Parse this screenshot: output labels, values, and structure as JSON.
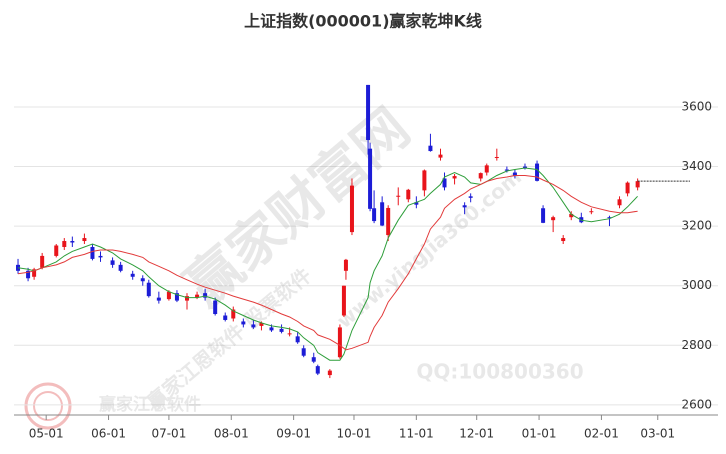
{
  "chart_data": {
    "type": "candlestick",
    "title": "上证指数(000001)赢家乾坤K线",
    "categories": [
      "04-17",
      "04-22",
      "04-25",
      "04-29",
      "05-06",
      "05-10",
      "05-14",
      "05-20",
      "05-24",
      "05-28",
      "06-03",
      "06-07",
      "06-13",
      "06-18",
      "06-21",
      "06-26",
      "07-01",
      "07-05",
      "07-10",
      "07-15",
      "07-19",
      "07-24",
      "07-29",
      "08-02",
      "08-07",
      "08-12",
      "08-16",
      "08-21",
      "08-26",
      "08-30",
      "09-03",
      "09-06",
      "09-11",
      "09-13",
      "09-19",
      "09-24",
      "09-26",
      "09-27",
      "09-30",
      "10-08",
      "10-09",
      "10-11",
      "10-15",
      "10-18",
      "10-23",
      "10-28",
      "11-01",
      "11-05",
      "11-08",
      "11-13",
      "11-15",
      "11-20",
      "11-25",
      "11-28",
      "12-03",
      "12-06",
      "12-11",
      "12-16",
      "12-20",
      "12-25",
      "12-31",
      "01-03",
      "01-08",
      "01-13",
      "01-17",
      "01-22",
      "01-27",
      "02-05",
      "02-10",
      "02-14",
      "02-19"
    ],
    "open": [
      3070,
      3050,
      3030,
      3060,
      3100,
      3130,
      3150,
      3150,
      3130,
      3100,
      3085,
      3070,
      3040,
      3025,
      3010,
      2960,
      2955,
      2975,
      2950,
      2960,
      2975,
      2950,
      2900,
      2890,
      2880,
      2870,
      2865,
      2860,
      2855,
      2840,
      2830,
      2790,
      2760,
      2730,
      2700,
      2760,
      2900,
      3050,
      3180,
      3674,
      3460,
      3260,
      3280,
      3170,
      3300,
      3290,
      3280,
      3320,
      3470,
      3430,
      3360,
      3360,
      3270,
      3300,
      3360,
      3380,
      3430,
      3390,
      3380,
      3400,
      3410,
      3260,
      3220,
      3150,
      3230,
      3230,
      3250,
      3230,
      3270,
      3310,
      3330
    ],
    "high": [
      3090,
      3060,
      3060,
      3110,
      3140,
      3160,
      3165,
      3175,
      3140,
      3115,
      3095,
      3080,
      3050,
      3035,
      3020,
      2980,
      2985,
      2985,
      2975,
      2980,
      2990,
      2960,
      2910,
      2930,
      2890,
      2885,
      2880,
      2870,
      2870,
      2860,
      2845,
      2800,
      2775,
      2735,
      2720,
      2870,
      3000,
      3090,
      3360,
      3674,
      3480,
      3320,
      3300,
      3270,
      3330,
      3325,
      3300,
      3390,
      3510,
      3460,
      3380,
      3375,
      3280,
      3310,
      3380,
      3410,
      3460,
      3400,
      3390,
      3410,
      3420,
      3270,
      3235,
      3170,
      3250,
      3245,
      3260,
      3235,
      3300,
      3350,
      3360
    ],
    "low": [
      3040,
      3015,
      3020,
      3055,
      3095,
      3120,
      3130,
      3140,
      3085,
      3080,
      3060,
      3045,
      3020,
      3000,
      2960,
      2940,
      2950,
      2945,
      2920,
      2955,
      2950,
      2900,
      2880,
      2880,
      2860,
      2855,
      2850,
      2845,
      2840,
      2830,
      2805,
      2760,
      2740,
      2700,
      2690,
      2755,
      2895,
      3020,
      3170,
      3440,
      3250,
      3210,
      3200,
      3150,
      3270,
      3280,
      3260,
      3300,
      3450,
      3420,
      3320,
      3340,
      3240,
      3280,
      3350,
      3370,
      3420,
      3380,
      3360,
      3390,
      3350,
      3210,
      3180,
      3140,
      3220,
      3210,
      3240,
      3200,
      3260,
      3300,
      3320
    ],
    "close": [
      3050,
      3025,
      3055,
      3100,
      3135,
      3150,
      3145,
      3160,
      3090,
      3095,
      3070,
      3050,
      3030,
      3015,
      2965,
      2950,
      2980,
      2950,
      2965,
      2970,
      2960,
      2905,
      2885,
      2920,
      2870,
      2860,
      2875,
      2850,
      2845,
      2840,
      2810,
      2765,
      2745,
      2705,
      2715,
      2860,
      3000,
      3087,
      3336,
      3489,
      3258,
      3217,
      3202,
      3261,
      3302,
      3322,
      3272,
      3387,
      3452,
      3440,
      3330,
      3368,
      3263,
      3295,
      3378,
      3404,
      3432,
      3386,
      3368,
      3394,
      3352,
      3211,
      3230,
      3160,
      3241,
      3213,
      3250,
      3229,
      3290,
      3346,
      3351
    ],
    "series": [
      {
        "color": "#2e9e3a",
        "values": [
          3060,
          3055,
          3050,
          3060,
          3080,
          3100,
          3115,
          3130,
          3140,
          3130,
          3110,
          3090,
          3070,
          3050,
          3030,
          3000,
          2980,
          2970,
          2960,
          2960,
          2965,
          2955,
          2935,
          2915,
          2900,
          2885,
          2875,
          2865,
          2860,
          2855,
          2845,
          2825,
          2800,
          2775,
          2750,
          2750,
          2770,
          2790,
          2850,
          2960,
          3010,
          3050,
          3100,
          3160,
          3220,
          3270,
          3280,
          3290,
          3310,
          3340,
          3365,
          3380,
          3365,
          3345,
          3340,
          3350,
          3370,
          3385,
          3390,
          3395,
          3390,
          3370,
          3330,
          3280,
          3240,
          3220,
          3215,
          3225,
          3240,
          3265,
          3300
        ]
      },
      {
        "color": "#e23b3b",
        "values": [
          3040,
          3045,
          3050,
          3060,
          3070,
          3080,
          3095,
          3105,
          3115,
          3120,
          3120,
          3115,
          3105,
          3095,
          3080,
          3065,
          3050,
          3035,
          3020,
          3005,
          2995,
          2985,
          2975,
          2965,
          2955,
          2945,
          2935,
          2920,
          2905,
          2895,
          2880,
          2865,
          2850,
          2835,
          2820,
          2800,
          2790,
          2785,
          2790,
          2810,
          2830,
          2860,
          2900,
          2945,
          2990,
          3040,
          3090,
          3140,
          3190,
          3230,
          3260,
          3290,
          3310,
          3325,
          3340,
          3350,
          3360,
          3365,
          3370,
          3370,
          3365,
          3355,
          3340,
          3320,
          3300,
          3280,
          3265,
          3250,
          3245,
          3245,
          3250
        ]
      }
    ],
    "up_color": "#e8141b",
    "down_color": "#1c1cd6",
    "xlim": [
      "04-15",
      "03-22"
    ],
    "xticks": [
      "05-01",
      "06-01",
      "07-01",
      "08-01",
      "09-01",
      "10-01",
      "11-01",
      "12-01",
      "01-01",
      "02-01",
      "03-01"
    ],
    "ylim": [
      2566,
      3808
    ],
    "yticks": [
      2600,
      2800,
      3000,
      3200,
      3400,
      3600
    ],
    "grid": true,
    "watermarks": [
      "赢家财富网",
      "赢家江恩软件 股票软件",
      "www.yingjia360.com",
      "赢家江恩软件",
      "QQ:100800360"
    ]
  }
}
